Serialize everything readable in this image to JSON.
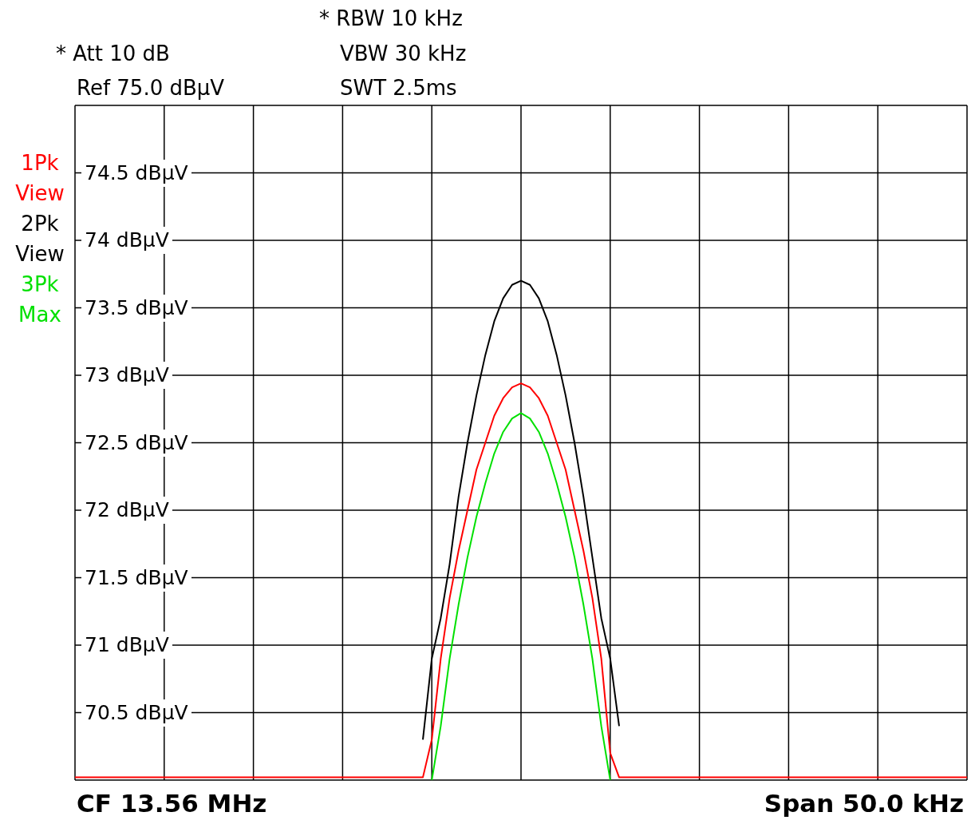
{
  "chart_data": {
    "type": "line",
    "categories": [
      null,
      null,
      null,
      null,
      null,
      null,
      null,
      null,
      null,
      null,
      null,
      null,
      null,
      null,
      null,
      null,
      null,
      null,
      null,
      null,
      null,
      null,
      null,
      null,
      null,
      null,
      null,
      null,
      null,
      null,
      null,
      null,
      null,
      null,
      null,
      null,
      null,
      null,
      null,
      null,
      null,
      null,
      null,
      null,
      null,
      null,
      null,
      null,
      null,
      null,
      null,
      null,
      null,
      null,
      null,
      null,
      null,
      null,
      null,
      null,
      null,
      null,
      null,
      null,
      null,
      null,
      null,
      null,
      null,
      null,
      null,
      null,
      null,
      null,
      null,
      null,
      null,
      null,
      null,
      null,
      null,
      null,
      null,
      null,
      null,
      null,
      null,
      null,
      null,
      null,
      null,
      null,
      null,
      null,
      null,
      null,
      null,
      null,
      null,
      null,
      null
    ],
    "series": [
      {
        "name": "1Pk View",
        "color": "#ff0000",
        "values": [
          70.02,
          70.02,
          70.02,
          70.02,
          70.02,
          70.02,
          70.02,
          70.02,
          70.02,
          70.02,
          70.02,
          70.02,
          70.02,
          70.02,
          70.02,
          70.02,
          70.02,
          70.02,
          70.02,
          70.02,
          70.02,
          70.02,
          70.02,
          70.02,
          70.02,
          70.02,
          70.02,
          70.02,
          70.02,
          70.02,
          70.02,
          70.02,
          70.02,
          70.02,
          70.02,
          70.02,
          70.02,
          70.02,
          70.02,
          70.02,
          70.3,
          70.9,
          71.35,
          71.7,
          72.0,
          72.3,
          72.5,
          72.7,
          72.83,
          72.91,
          72.94,
          72.91,
          72.83,
          72.7,
          72.5,
          72.3,
          72.0,
          71.7,
          71.35,
          70.9,
          70.2,
          70.02,
          70.02,
          70.02,
          70.02,
          70.02,
          70.02,
          70.02,
          70.02,
          70.02,
          70.02,
          70.02,
          70.02,
          70.02,
          70.02,
          70.02,
          70.02,
          70.02,
          70.02,
          70.02,
          70.02,
          70.02,
          70.02,
          70.02,
          70.02,
          70.02,
          70.02,
          70.02,
          70.02,
          70.02,
          70.02,
          70.02,
          70.02,
          70.02,
          70.02,
          70.02,
          70.02,
          70.02,
          70.02,
          70.02,
          70.02
        ]
      },
      {
        "name": "2Pk View",
        "color": "#000000",
        "values": [
          null,
          null,
          null,
          null,
          null,
          null,
          null,
          null,
          null,
          null,
          null,
          null,
          null,
          null,
          null,
          null,
          null,
          null,
          null,
          null,
          null,
          null,
          null,
          null,
          null,
          null,
          null,
          null,
          null,
          null,
          null,
          null,
          null,
          null,
          null,
          null,
          null,
          null,
          null,
          70.3,
          70.9,
          71.2,
          71.6,
          72.1,
          72.5,
          72.85,
          73.15,
          73.4,
          73.57,
          73.67,
          73.7,
          73.67,
          73.57,
          73.4,
          73.15,
          72.85,
          72.5,
          72.1,
          71.65,
          71.2,
          70.9,
          70.4,
          null,
          null,
          null,
          null,
          null,
          null,
          null,
          null,
          null,
          null,
          null,
          null,
          null,
          null,
          null,
          null,
          null,
          null,
          null,
          null,
          null,
          null,
          null,
          null,
          null,
          null,
          null,
          null,
          null,
          null,
          null,
          null,
          null,
          null,
          null,
          null,
          null,
          null,
          null
        ]
      },
      {
        "name": "3Pk Max",
        "color": "#00e000",
        "values": [
          null,
          null,
          null,
          null,
          null,
          null,
          null,
          null,
          null,
          null,
          null,
          null,
          null,
          null,
          null,
          null,
          null,
          null,
          null,
          null,
          null,
          null,
          null,
          null,
          null,
          null,
          null,
          null,
          null,
          null,
          null,
          null,
          null,
          null,
          null,
          null,
          null,
          null,
          null,
          null,
          70,
          70.4,
          70.9,
          71.3,
          71.65,
          71.95,
          72.2,
          72.42,
          72.58,
          72.68,
          72.72,
          72.68,
          72.58,
          72.42,
          72.2,
          71.95,
          71.65,
          71.3,
          70.9,
          70.4,
          70,
          null,
          null,
          null,
          null,
          null,
          null,
          null,
          null,
          null,
          null,
          null,
          null,
          null,
          null,
          null,
          null,
          null,
          null,
          null,
          null,
          null,
          null,
          null,
          null,
          null,
          null,
          null,
          null,
          null,
          null,
          null,
          null,
          null,
          null,
          null,
          null,
          null,
          null,
          null,
          null
        ]
      }
    ],
    "ylim": [
      70,
      75
    ],
    "yticks": [
      {
        "value": 70,
        "label": null
      },
      {
        "value": 70.5,
        "label": "70.5 dBμV"
      },
      {
        "value": 71,
        "label": "71 dBμV"
      },
      {
        "value": 71.5,
        "label": "71.5 dBμV"
      },
      {
        "value": 72,
        "label": "72 dBμV"
      },
      {
        "value": 72.5,
        "label": "72.5 dBμV"
      },
      {
        "value": 73,
        "label": "73 dBμV"
      },
      {
        "value": 73.5,
        "label": "73.5 dBμV"
      },
      {
        "value": 74,
        "label": "74 dBμV"
      },
      {
        "value": 74.5,
        "label": "74.5 dBμV"
      },
      {
        "value": 75,
        "label": null
      }
    ],
    "grid": true,
    "legend": "left",
    "marker": "none",
    "line_style": "solid",
    "annotations": [
      "* Att 10 dB",
      "Ref 75.0 dBμV",
      "* RBW 10 kHz",
      "VBW 30 kHz",
      "SWT 2.5ms",
      "CF 13.56 MHz",
      "Span 50.0 kHz"
    ]
  }
}
